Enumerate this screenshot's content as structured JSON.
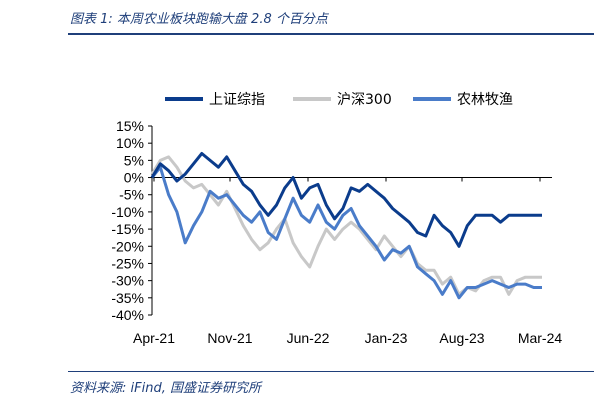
{
  "header": {
    "title": "图表 1:  本周农业板块跑输大盘 2.8 个百分点"
  },
  "footer": {
    "source": "资料来源:  iFind,  国盛证券研究所"
  },
  "chart_data": {
    "type": "line",
    "title": "本周农业板块跑输大盘 2.8 个百分点",
    "xlabel": "",
    "ylabel": "",
    "ylim": [
      -40,
      15
    ],
    "y_ticks": [
      "15%",
      "10%",
      "5%",
      "0%",
      "-5%",
      "-10%",
      "-15%",
      "-20%",
      "-25%",
      "-30%",
      "-35%",
      "-40%"
    ],
    "x_ticks": [
      "Apr-21",
      "Nov-21",
      "Jun-22",
      "Jan-23",
      "Aug-23",
      "Mar-24"
    ],
    "x": [
      0,
      1,
      2,
      3,
      4,
      5,
      6,
      7,
      8,
      9,
      10,
      11,
      12,
      13,
      14,
      15,
      16,
      17,
      18,
      19,
      20,
      21,
      22,
      23,
      24,
      25,
      26,
      27,
      28,
      29,
      30,
      31,
      32,
      33,
      34,
      35,
      36,
      37,
      38,
      39,
      40,
      41,
      42,
      43,
      44,
      45,
      46,
      47
    ],
    "legend": [
      "上证综指",
      "沪深300",
      "农林牧渔"
    ],
    "colors": {
      "上证综指": "#0b3c8c",
      "沪深300": "#c8c8c8",
      "农林牧渔": "#4a7cc9"
    },
    "series": [
      {
        "name": "上证综指",
        "values": [
          0,
          4,
          2,
          -1,
          1,
          4,
          7,
          5,
          3,
          6,
          2,
          -2,
          -4,
          -8,
          -11,
          -8,
          -3,
          0,
          -6,
          -3,
          -2,
          -8,
          -12,
          -9,
          -3,
          -4,
          -2,
          -4,
          -6,
          -9,
          -11,
          -13,
          -16,
          -17,
          -11,
          -14,
          -16,
          -20,
          -14,
          -11,
          -11,
          -11,
          -13,
          -11,
          -11,
          -11,
          -11,
          -11
        ]
      },
      {
        "name": "沪深300",
        "values": [
          1,
          5,
          6,
          3,
          -1,
          -3,
          -2,
          -5,
          -8,
          -4,
          -9,
          -14,
          -18,
          -21,
          -19,
          -15,
          -12,
          -19,
          -23,
          -26,
          -20,
          -15,
          -18,
          -15,
          -13,
          -15,
          -18,
          -21,
          -17,
          -20,
          -23,
          -20,
          -25,
          -27,
          -27,
          -31,
          -29,
          -34,
          -32,
          -33,
          -30,
          -29,
          -29,
          -34,
          -30,
          -29,
          -29,
          -29
        ]
      },
      {
        "name": "农林牧渔",
        "values": [
          0,
          3,
          -5,
          -10,
          -19,
          -14,
          -10,
          -4,
          -6,
          -5,
          -8,
          -11,
          -13,
          -10,
          -16,
          -18,
          -12,
          -6,
          -11,
          -13,
          -8,
          -13,
          -15,
          -11,
          -9,
          -14,
          -17,
          -20,
          -24,
          -21,
          -22,
          -20,
          -26,
          -28,
          -30,
          -34,
          -30,
          -35,
          -32,
          -32,
          -31,
          -30,
          -31,
          -32,
          -31,
          -31,
          -32,
          -32
        ]
      }
    ]
  }
}
